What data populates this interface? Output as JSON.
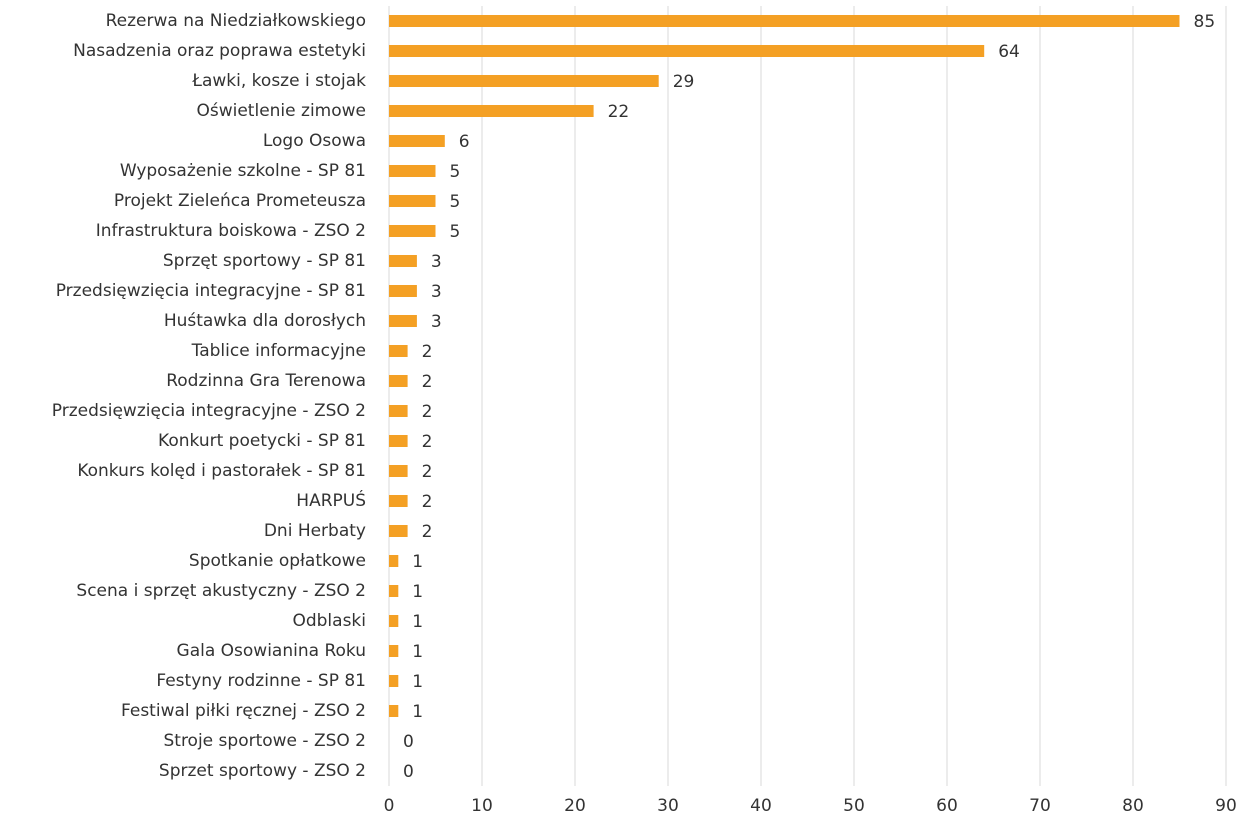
{
  "chart_data": {
    "type": "barh",
    "categories": [
      "Rezerwa na Niedziałkowskiego",
      "Nasadzenia oraz poprawa estetyki",
      "Ławki, kosze i stojak",
      "Oświetlenie zimowe",
      "Logo Osowa",
      "Wyposażenie szkolne - SP 81",
      "Projekt Zieleńca Prometeusza",
      "Infrastruktura boiskowa - ZSO 2",
      "Sprzęt sportowy - SP 81",
      "Przedsięwzięcia integracyjne - SP 81",
      "Huśtawka dla dorosłych",
      "Tablice informacyjne",
      "Rodzinna Gra Terenowa",
      "Przedsięwzięcia integracyjne - ZSO 2",
      "Konkurt poetycki - SP 81",
      "Konkurs kolęd i pastorałek - SP 81",
      "HARPUŚ",
      "Dni Herbaty",
      "Spotkanie opłatkowe",
      "Scena i sprzęt akustyczny - ZSO 2",
      "Odblaski",
      "Gala Osowianina Roku",
      "Festyny rodzinne - SP 81",
      "Festiwal piłki ręcznej - ZSO 2",
      "Stroje sportowe - ZSO 2",
      "Sprzet sportowy - ZSO 2"
    ],
    "values": [
      85,
      64,
      29,
      22,
      6,
      5,
      5,
      5,
      3,
      3,
      3,
      2,
      2,
      2,
      2,
      2,
      2,
      2,
      1,
      1,
      1,
      1,
      1,
      1,
      0,
      0
    ],
    "color": "#f4a024",
    "xlim": [
      0,
      90
    ],
    "xticks": [
      0,
      10,
      20,
      30,
      40,
      50,
      60,
      70,
      80,
      90
    ],
    "grid": true
  }
}
